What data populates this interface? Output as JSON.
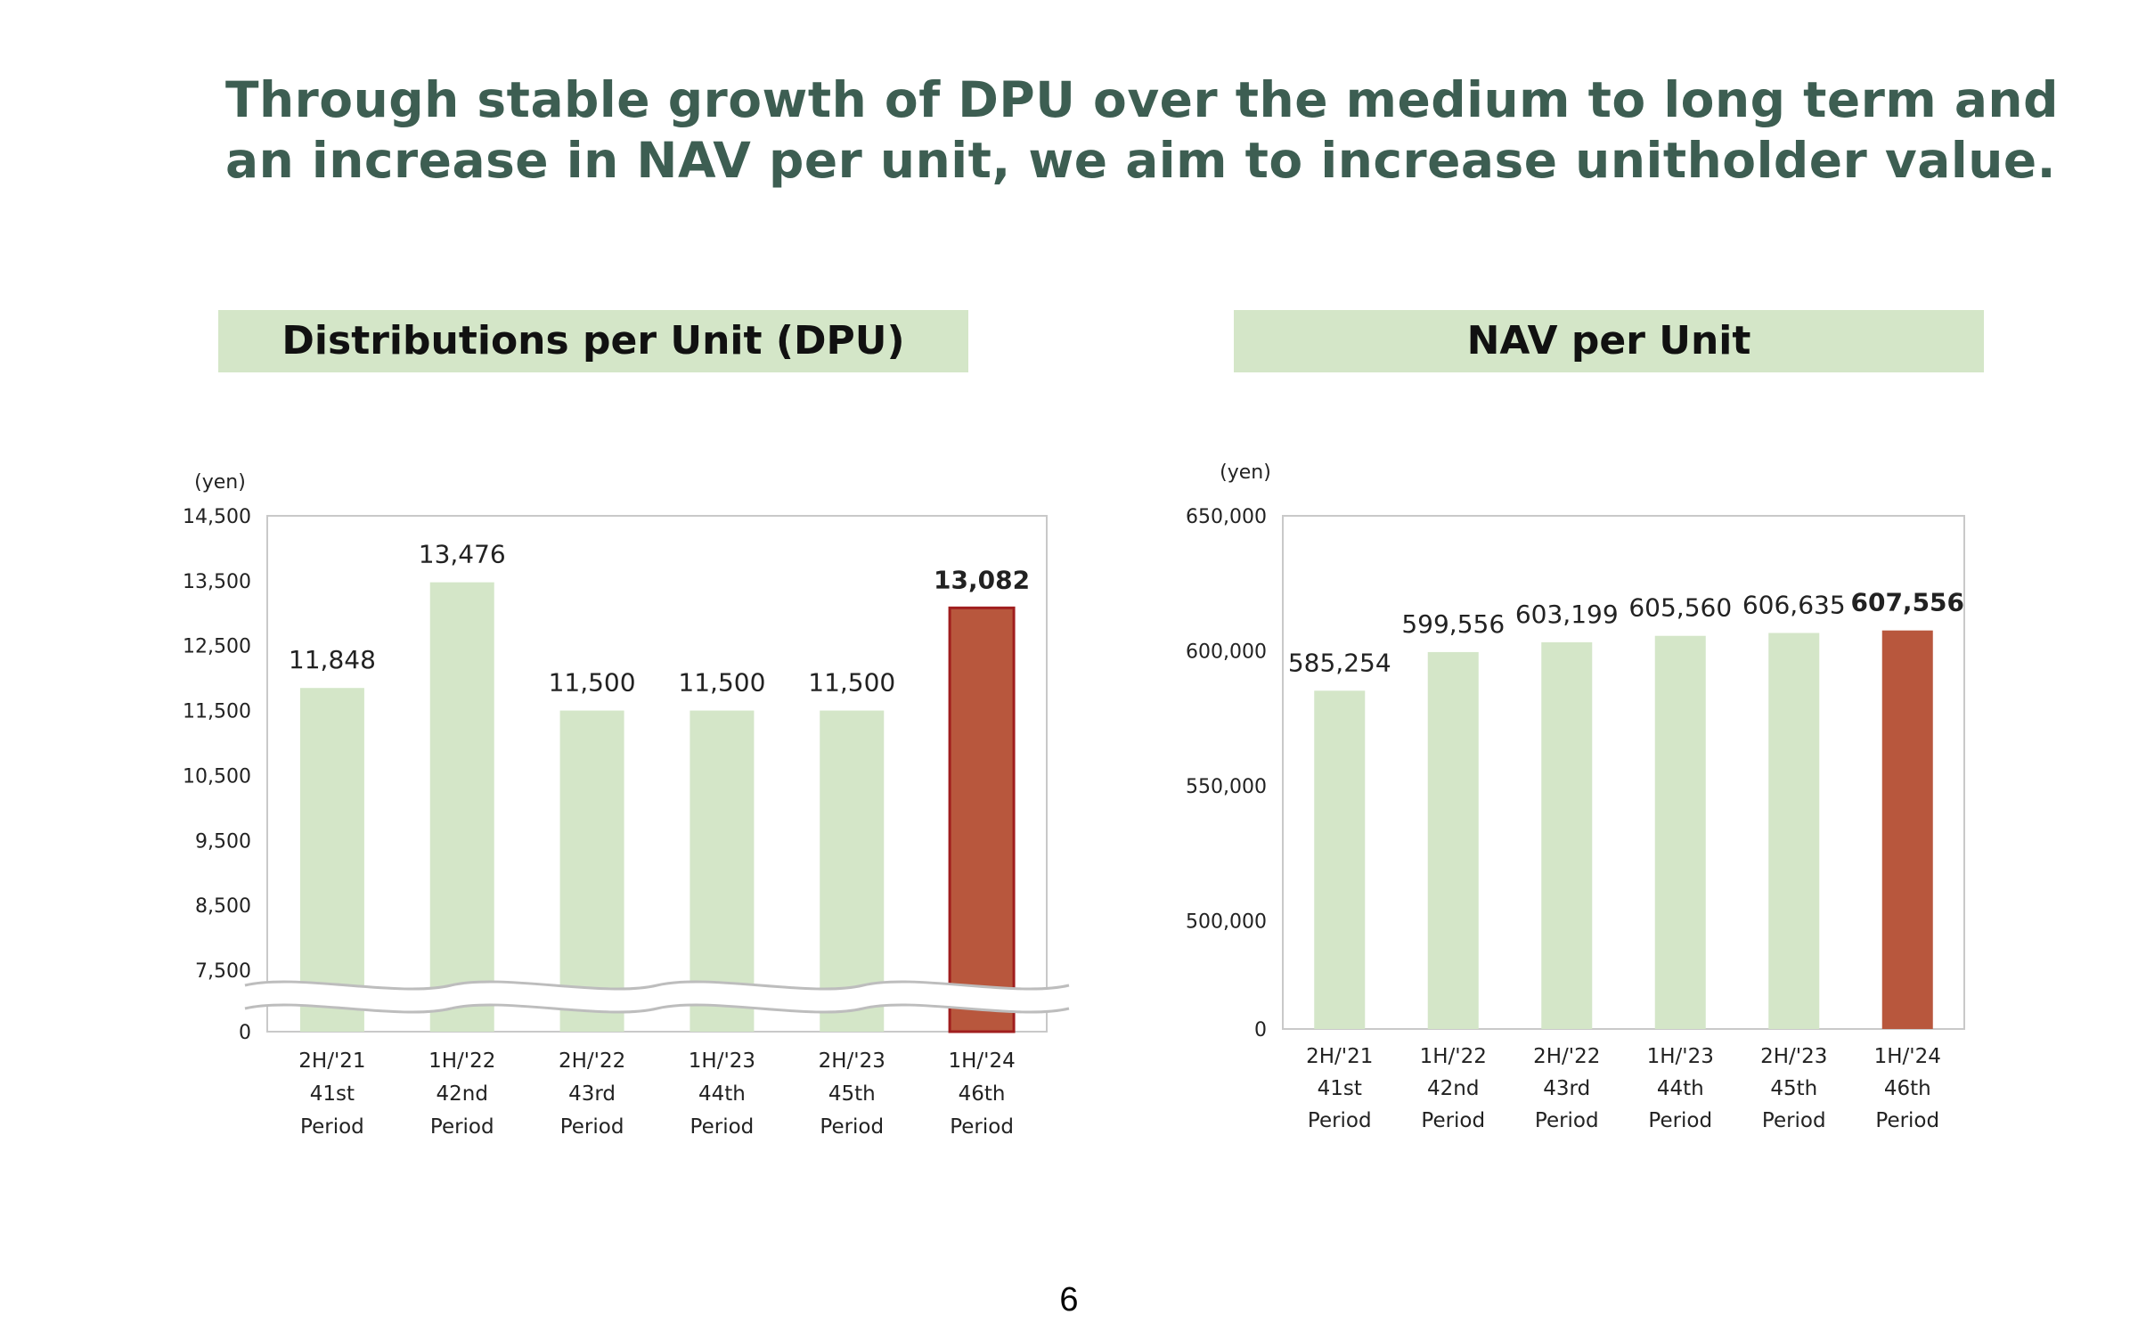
{
  "headline": {
    "line1": "Through stable growth of DPU over the medium to long term and",
    "line2": "an increase in NAV per unit, we aim to increase unitholder value."
  },
  "page_number": "6",
  "colors": {
    "headline": "#3d5e52",
    "title_band": "#d4e6c8",
    "bar_normal": "#d4e6c8",
    "bar_highlight": "#b8573d",
    "bar_highlight_border": "#a01e1e"
  },
  "chart_data": [
    {
      "id": "dpu",
      "type": "bar",
      "title": "Distributions per Unit (DPU)",
      "unit_label": "(yen)",
      "categories": [
        [
          "2H/'21",
          "41st",
          "Period"
        ],
        [
          "1H/'22",
          "42nd",
          "Period"
        ],
        [
          "2H/'22",
          "43rd",
          "Period"
        ],
        [
          "1H/'23",
          "44th",
          "Period"
        ],
        [
          "2H/'23",
          "45th",
          "Period"
        ],
        [
          "1H/'24",
          "46th",
          "Period"
        ]
      ],
      "values": [
        11848,
        13476,
        11500,
        11500,
        11500,
        13082
      ],
      "value_labels": [
        "11,848",
        "13,476",
        "11,500",
        "11,500",
        "11,500",
        "13,082"
      ],
      "highlight_index": 5,
      "ylim": [
        7500,
        14500
      ],
      "y_ticks": [
        7500,
        8500,
        9500,
        10500,
        11500,
        12500,
        13500,
        14500
      ],
      "y_tick_labels": [
        "7,500",
        "8,500",
        "9,500",
        "10,500",
        "11,500",
        "12,500",
        "13,500",
        "14,500"
      ],
      "axis_break": true,
      "baseline_label": "0",
      "grid": false
    },
    {
      "id": "nav",
      "type": "bar",
      "title": "NAV per Unit",
      "unit_label": "(yen)",
      "categories": [
        [
          "2H/'21",
          "41st",
          "Period"
        ],
        [
          "1H/'22",
          "42nd",
          "Period"
        ],
        [
          "2H/'22",
          "43rd",
          "Period"
        ],
        [
          "1H/'23",
          "44th",
          "Period"
        ],
        [
          "2H/'23",
          "45th",
          "Period"
        ],
        [
          "1H/'24",
          "46th",
          "Period"
        ]
      ],
      "values": [
        585254,
        599556,
        603199,
        605560,
        606635,
        607556
      ],
      "value_labels": [
        "585,254",
        "599,556",
        "603,199",
        "605,560",
        "606,635",
        "607,556"
      ],
      "highlight_index": 5,
      "ylim": [
        460000,
        650000
      ],
      "y_ticks": [
        500000,
        550000,
        600000,
        650000
      ],
      "y_tick_labels": [
        "500,000",
        "550,000",
        "600,000",
        "650,000"
      ],
      "axis_break": false,
      "baseline_label": "0",
      "grid": false
    }
  ]
}
